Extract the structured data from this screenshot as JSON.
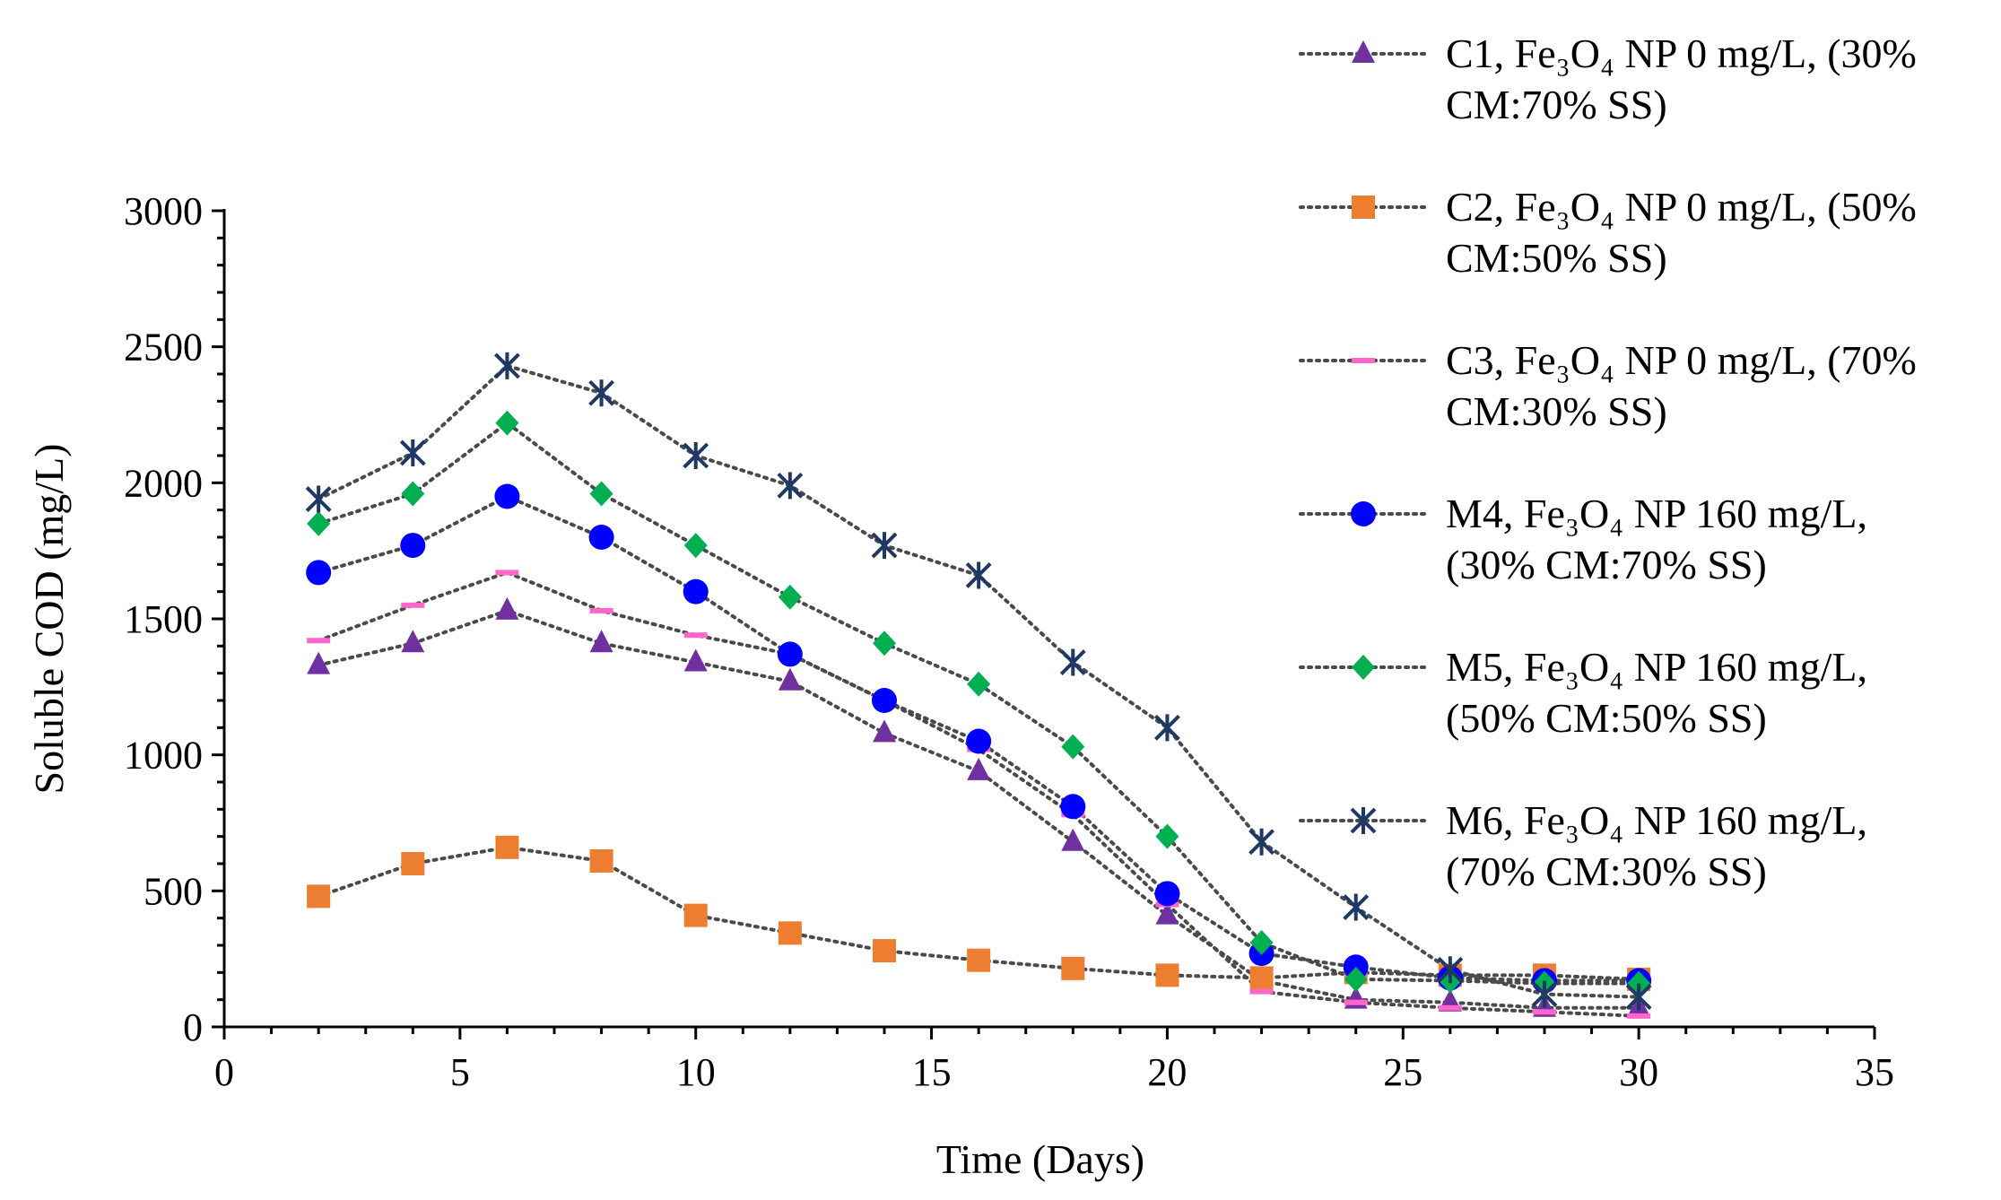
{
  "chart_data": {
    "type": "line",
    "title": "",
    "xlabel": "Time (Days)",
    "ylabel": "Soluble COD (mg/L)",
    "xlim": [
      0,
      35
    ],
    "ylim": [
      0,
      3000
    ],
    "xticks": [
      0,
      5,
      10,
      15,
      20,
      25,
      30,
      35
    ],
    "yticks": [
      0,
      500,
      1000,
      1500,
      2000,
      2500,
      3000
    ],
    "x": [
      2,
      4,
      6,
      8,
      10,
      12,
      14,
      16,
      18,
      20,
      22,
      24,
      26,
      28,
      30
    ],
    "legend_position": "top-right",
    "series": [
      {
        "id": "C1",
        "label_line1": "C1, Fe₃O₄ NP 0 mg/L, (30%",
        "label_line2": "CM:70% SS)",
        "marker": "triangle",
        "color": "#7030a0",
        "values": [
          1330,
          1410,
          1530,
          1410,
          1340,
          1270,
          1080,
          940,
          680,
          410,
          170,
          100,
          90,
          70,
          70
        ]
      },
      {
        "id": "C2",
        "label_line1": "C2, Fe₃O₄ NP 0 mg/L, (50%",
        "label_line2": "CM:50% SS)",
        "marker": "square",
        "color": "#ed7d31",
        "values": [
          480,
          600,
          660,
          610,
          410,
          345,
          280,
          245,
          215,
          190,
          180,
          200,
          190,
          190,
          175
        ]
      },
      {
        "id": "C3",
        "label_line1": "C3, Fe₃O₄ NP 0 mg/L, (70%",
        "label_line2": "CM:30% SS)",
        "marker": "dash",
        "color": "#ff66cc",
        "values": [
          1420,
          1550,
          1670,
          1530,
          1440,
          1370,
          1200,
          1020,
          780,
          450,
          130,
          90,
          70,
          55,
          40
        ]
      },
      {
        "id": "M4",
        "label_line1": "M4, Fe₃O₄ NP 160 mg/L,",
        "label_line2": "(30% CM:70% SS)",
        "marker": "circle",
        "color": "#0000ff",
        "values": [
          1670,
          1770,
          1950,
          1800,
          1600,
          1370,
          1200,
          1050,
          810,
          490,
          270,
          220,
          180,
          170,
          170
        ]
      },
      {
        "id": "M5",
        "label_line1": "M5, Fe₃O₄ NP 160 mg/L,",
        "label_line2": "(50% CM:50% SS)",
        "marker": "diamond",
        "color": "#00b050",
        "values": [
          1850,
          1960,
          2220,
          1960,
          1770,
          1580,
          1410,
          1260,
          1030,
          700,
          310,
          175,
          170,
          160,
          160
        ]
      },
      {
        "id": "M6",
        "label_line1": "M6, Fe₃O₄ NP 160 mg/L,",
        "label_line2": "(70% CM:30% SS)",
        "marker": "asterisk",
        "color": "#1f3864",
        "values": [
          1940,
          2110,
          2430,
          2330,
          2100,
          1990,
          1770,
          1660,
          1340,
          1100,
          680,
          440,
          210,
          120,
          110
        ]
      }
    ]
  }
}
